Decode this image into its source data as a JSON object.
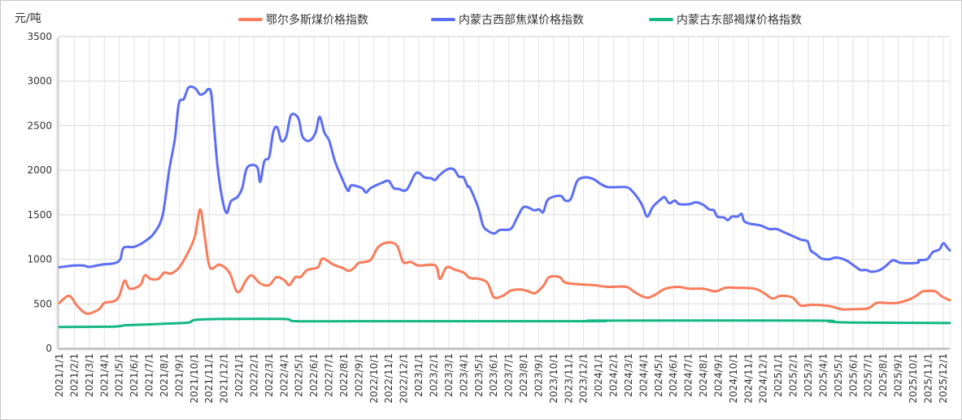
{
  "chart_data": {
    "type": "line",
    "title": "",
    "ylabel": "元/吨",
    "xlabel": "",
    "ylim": [
      0,
      3500
    ],
    "yticks": [
      0,
      500,
      1000,
      1500,
      2000,
      2500,
      3000,
      3500
    ],
    "grid": true,
    "legend_placement": "top-center",
    "x_unit": "months since 2021/1/1",
    "categories": [
      "2021/1/1",
      "2021/2/1",
      "2021/3/1",
      "2021/4/1",
      "2021/5/1",
      "2021/6/1",
      "2021/7/1",
      "2021/8/1",
      "2021/9/1",
      "2021/10/1",
      "2021/11/1",
      "2021/12/1",
      "2022/1/1",
      "2022/2/1",
      "2022/3/1",
      "2022/4/1",
      "2022/5/1",
      "2022/6/1",
      "2022/7/1",
      "2022/8/1",
      "2022/9/1",
      "2022/10/1",
      "2022/11/1",
      "2022/12/1",
      "2023/1/1",
      "2023/2/1",
      "2023/3/1",
      "2023/4/1",
      "2023/5/1",
      "2023/6/1",
      "2023/7/1",
      "2023/8/1",
      "2023/9/1",
      "2023/10/1",
      "2023/11/1",
      "2023/12/1",
      "2024/1/1",
      "2024/2/1",
      "2024/3/1",
      "2024/4/1",
      "2024/5/1",
      "2024/6/1",
      "2024/7/1",
      "2024/8/1",
      "2024/9/1",
      "2024/10/1",
      "2024/11/1",
      "2024/12/1",
      "2025/1/1",
      "2025/2/1",
      "2025/3/1",
      "2025/4/1",
      "2025/5/1",
      "2025/6/1",
      "2025/7/1",
      "2025/8/1",
      "2025/9/1",
      "2025/10/1",
      "2025/11/1",
      "2025/12/1"
    ],
    "series": [
      {
        "name": "鄂尔多斯煤价格指数",
        "color": "#fb7c5a",
        "points": [
          [
            0,
            510
          ],
          [
            0.65,
            590
          ],
          [
            1.2,
            475
          ],
          [
            1.85,
            390
          ],
          [
            2.65,
            440
          ],
          [
            3,
            510
          ],
          [
            3.65,
            530
          ],
          [
            4,
            590
          ],
          [
            4.35,
            760
          ],
          [
            4.7,
            670
          ],
          [
            5.4,
            710
          ],
          [
            5.7,
            820
          ],
          [
            6.1,
            780
          ],
          [
            6.6,
            780
          ],
          [
            7,
            850
          ],
          [
            7.45,
            840
          ],
          [
            8,
            910
          ],
          [
            8.6,
            1080
          ],
          [
            9.05,
            1260
          ],
          [
            9.4,
            1560
          ],
          [
            9.7,
            1260
          ],
          [
            10.05,
            910
          ],
          [
            10.7,
            940
          ],
          [
            11.35,
            850
          ],
          [
            11.8,
            650
          ],
          [
            12.1,
            650
          ],
          [
            12.45,
            760
          ],
          [
            12.85,
            820
          ],
          [
            13.4,
            730
          ],
          [
            14,
            710
          ],
          [
            14.5,
            800
          ],
          [
            15.05,
            760
          ],
          [
            15.35,
            710
          ],
          [
            15.75,
            800
          ],
          [
            16.1,
            800
          ],
          [
            16.55,
            880
          ],
          [
            17.25,
            910
          ],
          [
            17.5,
            1000
          ],
          [
            17.75,
            1000
          ],
          [
            18.3,
            940
          ],
          [
            18.95,
            900
          ],
          [
            19.3,
            870
          ],
          [
            19.65,
            900
          ],
          [
            20,
            960
          ],
          [
            20.75,
            990
          ],
          [
            21.3,
            1140
          ],
          [
            22,
            1190
          ],
          [
            22.55,
            1150
          ],
          [
            22.95,
            970
          ],
          [
            23.45,
            970
          ],
          [
            24,
            930
          ],
          [
            25.1,
            930
          ],
          [
            25.4,
            780
          ],
          [
            25.85,
            910
          ],
          [
            26.45,
            880
          ],
          [
            27,
            850
          ],
          [
            27.4,
            790
          ],
          [
            28.05,
            780
          ],
          [
            28.6,
            730
          ],
          [
            29,
            575
          ],
          [
            29.6,
            590
          ],
          [
            30.15,
            650
          ],
          [
            30.8,
            660
          ],
          [
            31.3,
            640
          ],
          [
            31.75,
            620
          ],
          [
            32.3,
            700
          ],
          [
            32.7,
            800
          ],
          [
            33.4,
            800
          ],
          [
            33.75,
            740
          ],
          [
            34.6,
            720
          ],
          [
            35.65,
            710
          ],
          [
            36.65,
            690
          ],
          [
            37.85,
            690
          ],
          [
            38.5,
            620
          ],
          [
            39.2,
            570
          ],
          [
            39.75,
            600
          ],
          [
            40.45,
            670
          ],
          [
            41.35,
            690
          ],
          [
            42.05,
            670
          ],
          [
            43,
            670
          ],
          [
            43.8,
            640
          ],
          [
            44.45,
            680
          ],
          [
            45.15,
            680
          ],
          [
            46.4,
            670
          ],
          [
            47.05,
            620
          ],
          [
            47.6,
            560
          ],
          [
            48.15,
            590
          ],
          [
            48.95,
            570
          ],
          [
            49.5,
            480
          ],
          [
            50.2,
            490
          ],
          [
            51.4,
            475
          ],
          [
            52.2,
            440
          ],
          [
            53.05,
            440
          ],
          [
            54,
            450
          ],
          [
            54.55,
            510
          ],
          [
            55.2,
            510
          ],
          [
            55.9,
            510
          ],
          [
            56.75,
            550
          ],
          [
            57.3,
            600
          ],
          [
            57.65,
            640
          ],
          [
            58.45,
            640
          ],
          [
            58.9,
            585
          ],
          [
            59.45,
            540
          ]
        ]
      },
      {
        "name": "内蒙古西部焦煤价格指数",
        "color": "#5b6ef7",
        "points": [
          [
            0,
            910
          ],
          [
            0.92,
            930
          ],
          [
            1.63,
            930
          ],
          [
            2.0,
            915
          ],
          [
            2.82,
            940
          ],
          [
            3.64,
            955
          ],
          [
            4.07,
            1000
          ],
          [
            4.29,
            1130
          ],
          [
            4.99,
            1140
          ],
          [
            5.7,
            1200
          ],
          [
            6.35,
            1300
          ],
          [
            6.9,
            1500
          ],
          [
            7.33,
            2000
          ],
          [
            7.71,
            2350
          ],
          [
            7.98,
            2750
          ],
          [
            8.31,
            2800
          ],
          [
            8.63,
            2930
          ],
          [
            9.07,
            2920
          ],
          [
            9.39,
            2850
          ],
          [
            9.72,
            2870
          ],
          [
            9.93,
            2910
          ],
          [
            10.15,
            2850
          ],
          [
            10.37,
            2400
          ],
          [
            10.59,
            2000
          ],
          [
            10.91,
            1650
          ],
          [
            11.18,
            1520
          ],
          [
            11.45,
            1650
          ],
          [
            11.89,
            1700
          ],
          [
            12.21,
            1800
          ],
          [
            12.54,
            2030
          ],
          [
            13.19,
            2040
          ],
          [
            13.41,
            1870
          ],
          [
            13.68,
            2100
          ],
          [
            14.01,
            2150
          ],
          [
            14.28,
            2430
          ],
          [
            14.55,
            2480
          ],
          [
            14.82,
            2330
          ],
          [
            15.15,
            2380
          ],
          [
            15.47,
            2620
          ],
          [
            15.96,
            2580
          ],
          [
            16.23,
            2380
          ],
          [
            16.67,
            2330
          ],
          [
            17.1,
            2420
          ],
          [
            17.37,
            2600
          ],
          [
            17.7,
            2420
          ],
          [
            18.02,
            2330
          ],
          [
            18.4,
            2100
          ],
          [
            18.84,
            1920
          ],
          [
            19.27,
            1770
          ],
          [
            19.49,
            1830
          ],
          [
            20.2,
            1800
          ],
          [
            20.47,
            1750
          ],
          [
            20.79,
            1800
          ],
          [
            21.55,
            1860
          ],
          [
            21.99,
            1880
          ],
          [
            22.31,
            1800
          ],
          [
            22.64,
            1790
          ],
          [
            23.18,
            1780
          ],
          [
            23.72,
            1950
          ],
          [
            24.0,
            1970
          ],
          [
            24.38,
            1920
          ],
          [
            24.81,
            1910
          ],
          [
            25.08,
            1890
          ],
          [
            25.35,
            1940
          ],
          [
            25.9,
            2010
          ],
          [
            26.33,
            2010
          ],
          [
            26.66,
            1930
          ],
          [
            26.98,
            1920
          ],
          [
            27.25,
            1820
          ],
          [
            27.42,
            1800
          ],
          [
            27.96,
            1580
          ],
          [
            28.28,
            1380
          ],
          [
            28.61,
            1320
          ],
          [
            29.04,
            1290
          ],
          [
            29.42,
            1330
          ],
          [
            30.13,
            1340
          ],
          [
            30.51,
            1450
          ],
          [
            30.94,
            1580
          ],
          [
            31.32,
            1580
          ],
          [
            31.7,
            1550
          ],
          [
            32.03,
            1560
          ],
          [
            32.3,
            1530
          ],
          [
            32.57,
            1660
          ],
          [
            32.95,
            1700
          ],
          [
            33.5,
            1710
          ],
          [
            33.77,
            1660
          ],
          [
            34.15,
            1680
          ],
          [
            34.58,
            1880
          ],
          [
            35.13,
            1920
          ],
          [
            35.67,
            1900
          ],
          [
            36.1,
            1850
          ],
          [
            36.65,
            1810
          ],
          [
            37.84,
            1810
          ],
          [
            38.27,
            1760
          ],
          [
            38.65,
            1680
          ],
          [
            38.93,
            1600
          ],
          [
            39.25,
            1480
          ],
          [
            39.63,
            1590
          ],
          [
            40.28,
            1690
          ],
          [
            40.45,
            1690
          ],
          [
            40.72,
            1630
          ],
          [
            41.1,
            1660
          ],
          [
            41.37,
            1620
          ],
          [
            42.07,
            1620
          ],
          [
            42.51,
            1640
          ],
          [
            43.0,
            1610
          ],
          [
            43.38,
            1560
          ],
          [
            43.7,
            1550
          ],
          [
            43.92,
            1480
          ],
          [
            44.35,
            1470
          ],
          [
            44.63,
            1440
          ],
          [
            44.9,
            1480
          ],
          [
            45.28,
            1480
          ],
          [
            45.55,
            1510
          ],
          [
            45.71,
            1430
          ],
          [
            46.09,
            1400
          ],
          [
            46.8,
            1380
          ],
          [
            47.39,
            1340
          ],
          [
            47.88,
            1340
          ],
          [
            48.43,
            1300
          ],
          [
            48.97,
            1260
          ],
          [
            49.51,
            1220
          ],
          [
            49.95,
            1200
          ],
          [
            50.16,
            1100
          ],
          [
            50.49,
            1060
          ],
          [
            50.87,
            1010
          ],
          [
            51.41,
            1000
          ],
          [
            51.85,
            1020
          ],
          [
            52.5,
            990
          ],
          [
            53.04,
            930
          ],
          [
            53.48,
            880
          ],
          [
            53.86,
            880
          ],
          [
            54.24,
            860
          ],
          [
            54.78,
            880
          ],
          [
            55.21,
            930
          ],
          [
            55.65,
            990
          ],
          [
            56.19,
            960
          ],
          [
            57.28,
            960
          ],
          [
            57.38,
            990
          ],
          [
            57.93,
            1000
          ],
          [
            58.31,
            1080
          ],
          [
            58.74,
            1110
          ],
          [
            59.01,
            1180
          ],
          [
            59.28,
            1130
          ],
          [
            59.45,
            1100
          ]
        ]
      },
      {
        "name": "内蒙古东部褐煤价格指数",
        "color": "#14b883",
        "points": [
          [
            0,
            240
          ],
          [
            3.64,
            245
          ],
          [
            4.45,
            260
          ],
          [
            6.08,
            270
          ],
          [
            7.44,
            280
          ],
          [
            8.63,
            290
          ],
          [
            9.07,
            320
          ],
          [
            10.7,
            330
          ],
          [
            11.78,
            330
          ],
          [
            15.04,
            330
          ],
          [
            15.85,
            305
          ],
          [
            19.92,
            305
          ],
          [
            35.67,
            305
          ],
          [
            35.94,
            312
          ],
          [
            50.33,
            312
          ],
          [
            51.41,
            300
          ],
          [
            53.04,
            290
          ],
          [
            59.45,
            285
          ]
        ]
      }
    ]
  }
}
